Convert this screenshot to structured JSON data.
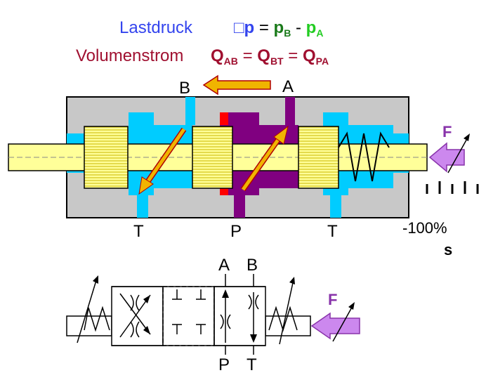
{
  "header": {
    "load_pressure_label": "Lastdruck",
    "dp_glyph": "□",
    "dp_symbol": "p",
    "equals": " = ",
    "pb_base": "p",
    "pb_sub": "B",
    "minus": " - ",
    "pa_base": "p",
    "pa_sub": "A",
    "flow_label": "Volumenstrom",
    "q_base": "Q",
    "qab_sub": "AB",
    "qbt_sub": "BT",
    "qpa_sub": "PA"
  },
  "valve": {
    "port_a": "A",
    "port_b": "B",
    "port_t_left": "T",
    "port_p": "P",
    "port_t_right": "T",
    "force_label": "F",
    "stroke_label": "-100%",
    "stroke_symbol": "s"
  },
  "symbol": {
    "port_a": "A",
    "port_b": "B",
    "port_p": "P",
    "port_t": "T",
    "force_label": "F"
  },
  "colors": {
    "body": "#c8c8c8",
    "spool": "#ffff99",
    "tank_oil": "#00ccff",
    "pressure_oil": "#800080",
    "flow_arrow": "#f0b400",
    "force_arrow": "#cc88ee",
    "label_blue": "#3344ee",
    "label_maroon": "#a01030",
    "label_green": "#1a7a1a",
    "label_lime": "#22cc22"
  }
}
